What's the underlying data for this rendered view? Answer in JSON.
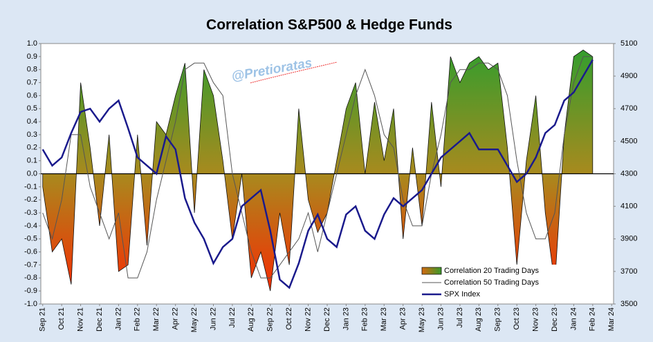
{
  "chart_data": {
    "type": "area_line_combo",
    "title": "Correlation S&P500 & Hedge Funds",
    "annotation": "@Pretioratas",
    "x": [
      0,
      0.5,
      1,
      1.5,
      2,
      2.5,
      3,
      3.5,
      4,
      4.5,
      5,
      5.5,
      6,
      6.5,
      7,
      7.5,
      8,
      8.5,
      9,
      9.5,
      10,
      10.5,
      11,
      11.5,
      12,
      12.5,
      13,
      13.5,
      14,
      14.5,
      15,
      15.5,
      16,
      16.5,
      17,
      17.5,
      18,
      18.5,
      19,
      19.5,
      20,
      20.5,
      21,
      21.5,
      22,
      22.5,
      23,
      23.5,
      24,
      24.5,
      25,
      25.5,
      26,
      26.5,
      27,
      27.5,
      28,
      28.5,
      29
    ],
    "series": [
      {
        "name": "Correlation 20 Trading Days",
        "kind": "area",
        "color": "#3a9a2a",
        "color_negative": "#ff2a10",
        "values": [
          -0.1,
          -0.6,
          -0.5,
          -0.85,
          0.7,
          0.2,
          -0.4,
          0.3,
          -0.75,
          -0.7,
          0.3,
          -0.55,
          0.4,
          0.3,
          0.6,
          0.85,
          -0.3,
          0.8,
          0.6,
          0.1,
          -0.5,
          0.0,
          -0.8,
          -0.6,
          -0.9,
          -0.3,
          -0.7,
          0.5,
          -0.2,
          -0.45,
          -0.3,
          0.1,
          0.5,
          0.7,
          0.0,
          0.55,
          0.1,
          0.5,
          -0.5,
          0.2,
          -0.4,
          0.55,
          -0.1,
          0.9,
          0.7,
          0.85,
          0.9,
          0.8,
          0.85,
          0.2,
          -0.7,
          0.1,
          0.6,
          -0.3,
          -0.85,
          0.3,
          0.9,
          0.95,
          0.9
        ]
      },
      {
        "name": "Correlation 50 Trading Days",
        "kind": "line",
        "color": "#555555",
        "values": [
          -0.3,
          -0.5,
          -0.2,
          0.3,
          0.3,
          -0.1,
          -0.3,
          -0.5,
          -0.3,
          -0.8,
          -0.8,
          -0.6,
          -0.2,
          0.1,
          0.4,
          0.8,
          0.85,
          0.85,
          0.7,
          0.6,
          0.0,
          -0.3,
          -0.6,
          -0.8,
          -0.8,
          -0.7,
          -0.6,
          -0.5,
          -0.3,
          -0.6,
          -0.3,
          0.0,
          0.3,
          0.6,
          0.8,
          0.6,
          0.3,
          0.2,
          -0.2,
          -0.4,
          -0.4,
          0.0,
          0.3,
          0.7,
          0.8,
          0.8,
          0.85,
          0.85,
          0.8,
          0.6,
          0.1,
          -0.3,
          -0.5,
          -0.5,
          -0.3,
          0.3,
          0.7,
          0.9,
          0.9
        ]
      },
      {
        "name": "SPX Index",
        "kind": "line",
        "axis": "y2",
        "color": "#1a1a8c",
        "values": [
          4450,
          4350,
          4400,
          4550,
          4680,
          4700,
          4620,
          4700,
          4750,
          4580,
          4400,
          4350,
          4300,
          4530,
          4450,
          4150,
          4000,
          3900,
          3750,
          3850,
          3900,
          4100,
          4150,
          4200,
          3950,
          3650,
          3600,
          3750,
          3950,
          4050,
          3900,
          3850,
          4050,
          4100,
          3950,
          3900,
          4050,
          4150,
          4100,
          4150,
          4200,
          4300,
          4400,
          4450,
          4500,
          4550,
          4450,
          4450,
          4450,
          4350,
          4250,
          4300,
          4400,
          4550,
          4600,
          4750,
          4800,
          4900,
          5000
        ]
      }
    ],
    "xlim": [
      -0.1,
      30.1
    ],
    "xticks": [
      {
        "value": 0,
        "label": "Sep 21"
      },
      {
        "value": 1,
        "label": "Oct 21"
      },
      {
        "value": 2,
        "label": "Nov 21"
      },
      {
        "value": 3,
        "label": "Dec 21"
      },
      {
        "value": 4,
        "label": "Jan 22"
      },
      {
        "value": 5,
        "label": "Feb 22"
      },
      {
        "value": 6,
        "label": "Mar 22"
      },
      {
        "value": 7,
        "label": "Apr 22"
      },
      {
        "value": 8,
        "label": "May 22"
      },
      {
        "value": 9,
        "label": "Jun 22"
      },
      {
        "value": 10,
        "label": "Jul 22"
      },
      {
        "value": 11,
        "label": "Aug 22"
      },
      {
        "value": 12,
        "label": "Sep 22"
      },
      {
        "value": 13,
        "label": "Oct 22"
      },
      {
        "value": 14,
        "label": "Nov 22"
      },
      {
        "value": 15,
        "label": "Dec 22"
      },
      {
        "value": 16,
        "label": "Jan 23"
      },
      {
        "value": 17,
        "label": "Feb 23"
      },
      {
        "value": 18,
        "label": "Mar 23"
      },
      {
        "value": 19,
        "label": "Apr 23"
      },
      {
        "value": 20,
        "label": "May 23"
      },
      {
        "value": 21,
        "label": "Jun 23"
      },
      {
        "value": 22,
        "label": "Jul 23"
      },
      {
        "value": 23,
        "label": "Aug 23"
      },
      {
        "value": 24,
        "label": "Sep 23"
      },
      {
        "value": 25,
        "label": "Oct 23"
      },
      {
        "value": 26,
        "label": "Nov 23"
      },
      {
        "value": 27,
        "label": "Dec 23"
      },
      {
        "value": 28,
        "label": "Jan 24"
      },
      {
        "value": 29,
        "label": "Feb 24"
      },
      {
        "value": 30,
        "label": "Mar 24"
      }
    ],
    "ylim": [
      -1,
      1
    ],
    "yticks": [
      {
        "value": 1,
        "label": "1.0"
      },
      0.9,
      0.8,
      0.7,
      0.6,
      0.5,
      0.4,
      0.3,
      0.2,
      0.1,
      {
        "value": 0,
        "label": "0.0"
      },
      -0.1,
      -0.2,
      -0.3,
      -0.4,
      -0.5,
      -0.6,
      -0.7,
      -0.8,
      -0.9,
      {
        "value": -1,
        "label": "-1.0"
      }
    ],
    "y2lim": [
      3500,
      5100
    ],
    "y2ticks": [
      3500,
      3700,
      3900,
      4100,
      4300,
      4500,
      4700,
      4900,
      5100
    ],
    "grid": false,
    "legend": "lower right"
  }
}
